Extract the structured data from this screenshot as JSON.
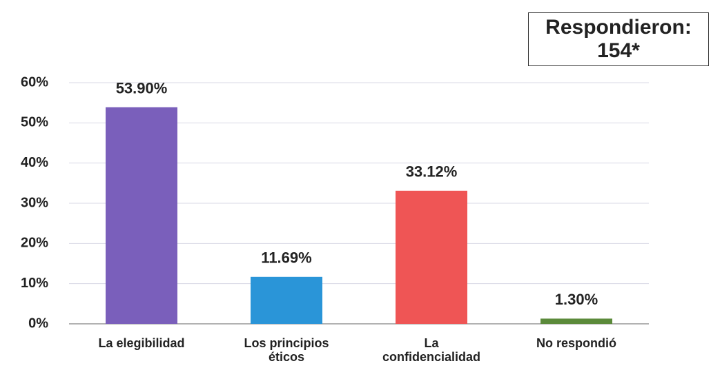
{
  "chart_data": {
    "type": "bar",
    "annotation": "Respondieron:\n154*",
    "categories": [
      "La elegibilidad",
      "Los principios\néticos",
      "La\nconfidencialidad",
      "No respondió"
    ],
    "values": [
      53.9,
      11.69,
      33.12,
      1.3
    ],
    "value_labels": [
      "53.90%",
      "11.69%",
      "33.12%",
      "1.30%"
    ],
    "colors": [
      "#7a5fbb",
      "#2a95d8",
      "#ef5555",
      "#5b8a3a"
    ],
    "ylim": [
      0,
      60
    ],
    "yticks": [
      {
        "value": 0,
        "label": "0%"
      },
      {
        "value": 10,
        "label": "10%"
      },
      {
        "value": 20,
        "label": "20%"
      },
      {
        "value": 30,
        "label": "30%"
      },
      {
        "value": 40,
        "label": "40%"
      },
      {
        "value": 50,
        "label": "50%"
      },
      {
        "value": 60,
        "label": "60%"
      }
    ],
    "grid": true
  }
}
